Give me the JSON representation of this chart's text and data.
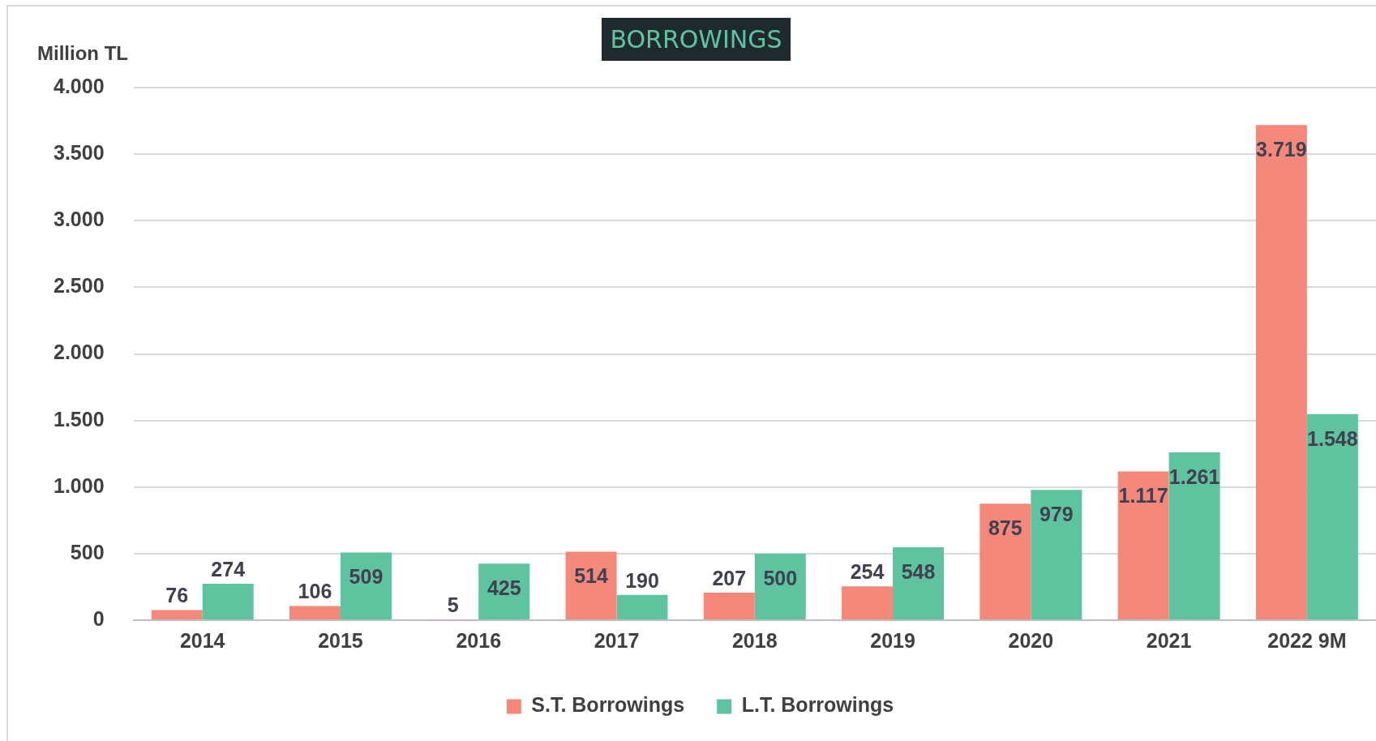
{
  "chart_data": {
    "type": "bar",
    "title": "BORROWINGS",
    "ylabel": "Million TL",
    "categories": [
      "2014",
      "2015",
      "2016",
      "2017",
      "2018",
      "2019",
      "2020",
      "2021",
      "2022 9M"
    ],
    "series": [
      {
        "name": "S.T. Borrowings",
        "color": "#f4897b",
        "values": [
          76,
          106,
          5,
          514,
          207,
          254,
          875,
          1117,
          3719
        ],
        "value_labels": [
          "76",
          "106",
          "5",
          "514",
          "207",
          "254",
          "875",
          "1.117",
          "3.719"
        ]
      },
      {
        "name": "L.T. Borrowings",
        "color": "#5fc3a0",
        "values": [
          274,
          509,
          425,
          190,
          500,
          548,
          979,
          1261,
          1548
        ],
        "value_labels": [
          "274",
          "509",
          "425",
          "190",
          "500",
          "548",
          "979",
          "1.261",
          "1.548"
        ]
      }
    ],
    "ylim": [
      0,
      4000
    ],
    "yticks": [
      {
        "value": 0,
        "label": "0"
      },
      {
        "value": 500,
        "label": "500"
      },
      {
        "value": 1000,
        "label": "1.000"
      },
      {
        "value": 1500,
        "label": "1.500"
      },
      {
        "value": 2000,
        "label": "2.000"
      },
      {
        "value": 2500,
        "label": "2.500"
      },
      {
        "value": 3000,
        "label": "3.000"
      },
      {
        "value": 3500,
        "label": "3.500"
      },
      {
        "value": 4000,
        "label": "4.000"
      }
    ],
    "grid": "y",
    "legend": "bottom"
  }
}
